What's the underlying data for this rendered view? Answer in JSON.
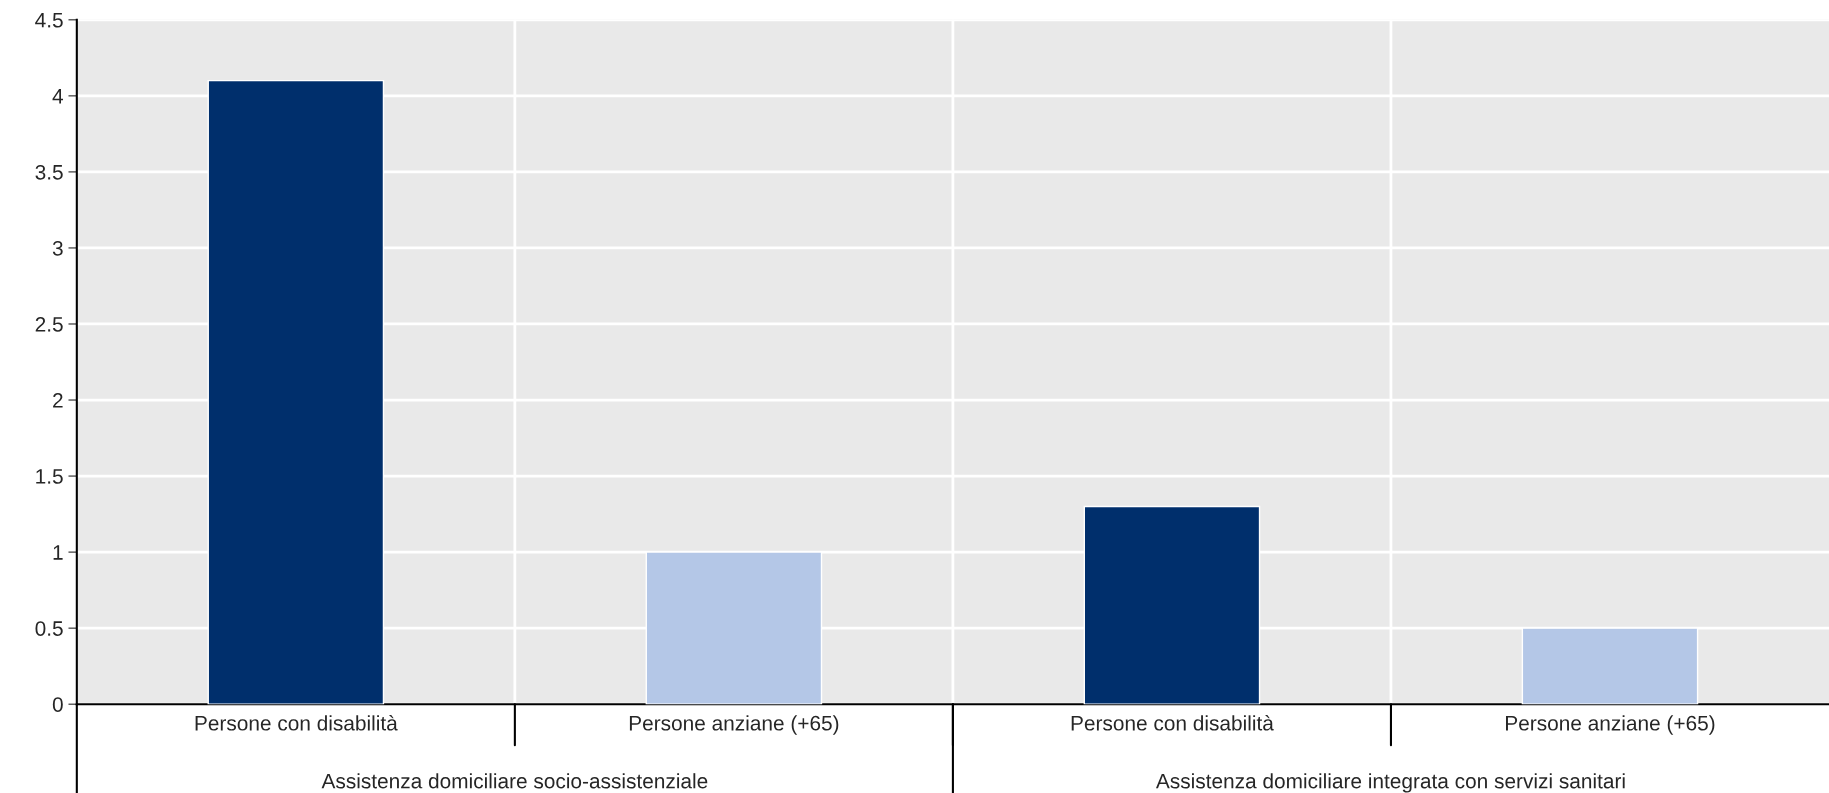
{
  "chart_data": {
    "type": "bar",
    "categories": [
      "Persone con disabilità",
      "Persone anziane (+65)",
      "Persone con disabilità",
      "Persone anziane (+65)"
    ],
    "values": [
      4.1,
      1.0,
      1.3,
      0.5
    ],
    "colors": [
      "#002f6c",
      "#b4c7e7",
      "#002f6c",
      "#b4c7e7"
    ],
    "ylim": [
      0,
      4.5
    ],
    "yticks": [
      0,
      0.5,
      1,
      1.5,
      2,
      2.5,
      3,
      3.5,
      4,
      4.5
    ],
    "grid": true,
    "legend": false,
    "annotations": [
      "Assistenza domiciliare socio-assistenziale",
      "Assistenza domiciliare integrata con servizi sanitari"
    ]
  }
}
